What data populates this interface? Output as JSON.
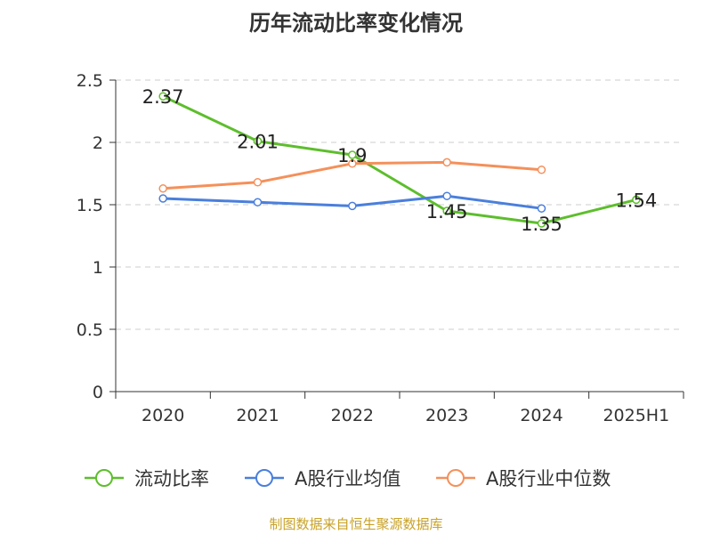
{
  "chart_data": {
    "type": "line",
    "title": "历年流动比率变化情况",
    "categories": [
      "2020",
      "2021",
      "2022",
      "2023",
      "2024",
      "2025H1"
    ],
    "ylim": [
      0,
      2.5
    ],
    "yticks": [
      "0",
      "0.5",
      "1",
      "1.5",
      "2",
      "2.5"
    ],
    "grid": true,
    "legend_position": "bottom",
    "series": [
      {
        "name": "流动比率",
        "color": "#5dbe2c",
        "values": [
          2.37,
          2.01,
          1.9,
          1.45,
          1.35,
          1.54
        ],
        "labels": [
          "2.37",
          "2.01",
          "1.9",
          "1.45",
          "1.35",
          "1.54"
        ]
      },
      {
        "name": "A股行业均值",
        "color": "#4a7fdc",
        "values": [
          1.55,
          1.52,
          1.49,
          1.57,
          1.47,
          null
        ]
      },
      {
        "name": "A股行业中位数",
        "color": "#f5905a",
        "values": [
          1.63,
          1.68,
          1.83,
          1.84,
          1.78,
          null
        ]
      }
    ]
  },
  "source_text": "制图数据来自恒生聚源数据库"
}
